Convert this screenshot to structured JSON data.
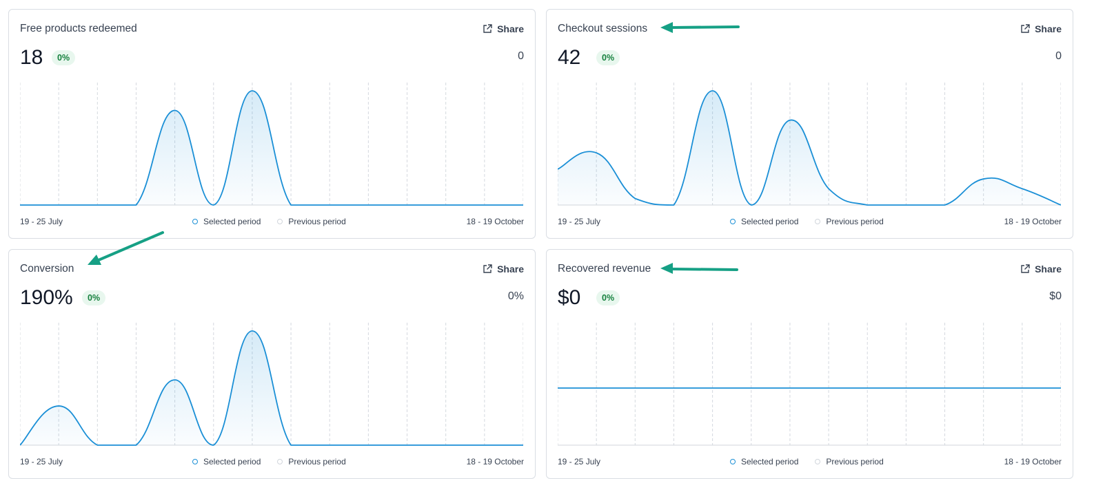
{
  "share_label": "Share",
  "legend": {
    "selected": "Selected period",
    "previous": "Previous period"
  },
  "date_start": "19 - 25 July",
  "date_end": "18 - 19 October",
  "colors": {
    "line": "#1a8fd6",
    "badge_bg": "#e8f7ee",
    "badge_text": "#15803d",
    "annotation_arrow": "#16a085"
  },
  "cards": [
    {
      "title": "Free products redeemed",
      "value": "18",
      "change": "0%",
      "previous_value": "0",
      "chart_data": {
        "type": "area",
        "x_points": 14,
        "values": [
          0,
          0,
          0,
          0,
          2.9,
          0,
          3.5,
          0,
          0,
          0,
          0,
          0,
          0,
          0
        ],
        "ylim": [
          0,
          3.5
        ],
        "grid": true
      }
    },
    {
      "title": "Checkout sessions",
      "value": "42",
      "change": "0%",
      "previous_value": "0",
      "chart_data": {
        "type": "area",
        "x_points": 14,
        "values": [
          1.1,
          1.6,
          0.2,
          0,
          3.5,
          0,
          2.6,
          0.5,
          0,
          0,
          0,
          0.8,
          0.5,
          0
        ],
        "ylim": [
          0,
          3.5
        ],
        "grid": true
      }
    },
    {
      "title": "Conversion",
      "value": "190%",
      "change": "0%",
      "previous_value": "0%",
      "chart_data": {
        "type": "area",
        "x_points": 14,
        "values": [
          0,
          1.2,
          0,
          0,
          2.0,
          0,
          3.5,
          0,
          0,
          0,
          0,
          0,
          0,
          0
        ],
        "ylim": [
          0,
          3.5
        ],
        "grid": true
      }
    },
    {
      "title": "Recovered revenue",
      "value": "$0",
      "change": "0%",
      "previous_value": "$0",
      "chart_data": {
        "type": "line",
        "x_points": 14,
        "values": [
          0,
          0,
          0,
          0,
          0,
          0,
          0,
          0,
          0,
          0,
          0,
          0,
          0,
          0
        ],
        "ylim": [
          -1,
          1
        ],
        "grid": true
      }
    }
  ]
}
